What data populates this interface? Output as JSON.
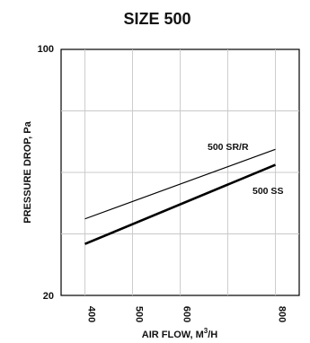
{
  "chart_data": {
    "type": "line",
    "title": "SIZE 500",
    "xlabel": "AIR FLOW, M",
    "xlabel_sup": "3",
    "xlabel_suffix": "/H",
    "ylabel": "PRESSURE DROP, Pa",
    "x_ticks": [
      "400",
      "500",
      "600",
      "800"
    ],
    "x_tick_values": [
      400,
      500,
      600,
      700,
      800
    ],
    "y_scale": "log",
    "ylim": [
      20,
      100
    ],
    "y_ticks": [
      "100",
      "20"
    ],
    "grid": true,
    "series": [
      {
        "name": "500 SR/R",
        "x": [
          400,
          800
        ],
        "y": [
          33,
          52
        ],
        "weight": "thin"
      },
      {
        "name": "500 SS",
        "x": [
          400,
          800
        ],
        "y": [
          28,
          47
        ],
        "weight": "thick"
      }
    ]
  }
}
